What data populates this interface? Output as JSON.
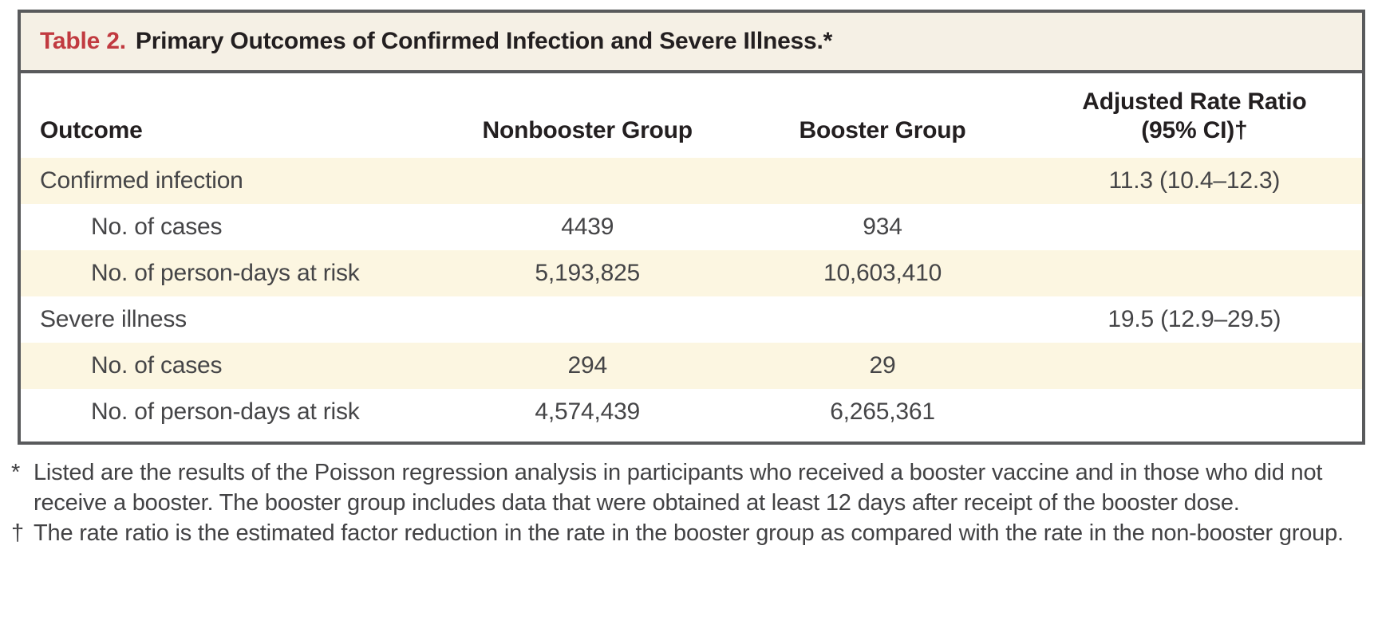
{
  "table": {
    "title_label": "Table 2.",
    "title_text": "Primary Outcomes of Confirmed Infection and Severe Illness.*",
    "header": {
      "outcome": "Outcome",
      "nonbooster": "Nonbooster Group",
      "booster": "Booster Group",
      "rate_ratio_line1": "Adjusted Rate Ratio",
      "rate_ratio_line2": "(95% CI)†"
    },
    "rows": [
      {
        "outcome": "Confirmed infection",
        "nonbooster": "",
        "booster": "",
        "rate_ratio": "11.3 (10.4–12.3)"
      },
      {
        "outcome": "No. of cases",
        "nonbooster": "4439",
        "booster": "934",
        "rate_ratio": ""
      },
      {
        "outcome": "No. of person-days at risk",
        "nonbooster": "5,193,825",
        "booster": "10,603,410",
        "rate_ratio": ""
      },
      {
        "outcome": "Severe illness",
        "nonbooster": "",
        "booster": "",
        "rate_ratio": "19.5 (12.9–29.5)"
      },
      {
        "outcome": "No. of cases",
        "nonbooster": "294",
        "booster": "29",
        "rate_ratio": ""
      },
      {
        "outcome": "No. of person-days at risk",
        "nonbooster": "4,574,439",
        "booster": "6,265,361",
        "rate_ratio": ""
      }
    ]
  },
  "footnotes": [
    {
      "marker": "*",
      "text": "Listed are the results of the Poisson regression analysis in participants who received a booster vaccine and in those who did not receive a booster. The booster group includes data that were obtained at least 12 days after receipt of the booster dose."
    },
    {
      "marker": "†",
      "text": "The rate ratio is the estimated factor reduction in the rate in the booster group as compared with the rate in the non-booster group."
    }
  ],
  "colors": {
    "accent_red": "#c13a40",
    "title_bar_bg": "#f5f0e5",
    "stripe_bg": "#fcf6e1",
    "frame_border": "#595a5c",
    "heading_text": "#231f20",
    "body_text": "#454547"
  }
}
